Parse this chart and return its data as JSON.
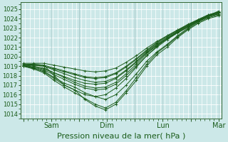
{
  "xlabel": "Pression niveau de la mer( hPa )",
  "bg_color": "#cce8e8",
  "grid_color": "#ffffff",
  "line_color": "#1a5c1a",
  "ylim": [
    1013.5,
    1025.7
  ],
  "yticks": [
    1014,
    1015,
    1016,
    1017,
    1018,
    1019,
    1020,
    1021,
    1022,
    1023,
    1024,
    1025
  ],
  "xtick_labels": [
    "",
    "Sam",
    "",
    "Dim",
    "",
    "Lun",
    "",
    "Mar"
  ],
  "xtick_positions": [
    0,
    1,
    2,
    3,
    4,
    5,
    6,
    7
  ],
  "xlim": [
    -0.1,
    7.1
  ],
  "major_day_vlines": [
    2,
    4,
    6
  ],
  "ensemble_lines": [
    [
      1019.0,
      1019.2,
      1019.1,
      1018.0,
      1017.0,
      1016.5,
      1015.5,
      1014.8,
      1014.4,
      1015.0,
      1016.2,
      1017.5,
      1019.0,
      1020.2,
      1021.0,
      1022.0,
      1022.8,
      1023.5,
      1024.0,
      1024.3
    ],
    [
      1019.0,
      1018.8,
      1018.5,
      1017.8,
      1017.2,
      1016.8,
      1016.2,
      1015.8,
      1015.5,
      1016.0,
      1017.0,
      1018.2,
      1019.5,
      1020.5,
      1021.3,
      1022.2,
      1023.0,
      1023.7,
      1024.2,
      1024.5
    ],
    [
      1019.0,
      1018.7,
      1018.3,
      1017.5,
      1016.8,
      1016.2,
      1015.6,
      1015.0,
      1014.6,
      1015.2,
      1016.4,
      1017.8,
      1019.2,
      1020.4,
      1021.2,
      1022.1,
      1022.9,
      1023.6,
      1024.1,
      1024.4
    ],
    [
      1019.1,
      1019.0,
      1018.8,
      1018.3,
      1017.8,
      1017.3,
      1016.9,
      1016.7,
      1016.8,
      1017.3,
      1018.2,
      1019.2,
      1020.3,
      1021.2,
      1021.9,
      1022.6,
      1023.2,
      1023.8,
      1024.3,
      1024.6
    ],
    [
      1019.2,
      1019.1,
      1019.0,
      1018.6,
      1018.2,
      1017.8,
      1017.5,
      1017.3,
      1017.4,
      1017.8,
      1018.6,
      1019.5,
      1020.5,
      1021.3,
      1022.0,
      1022.7,
      1023.3,
      1023.9,
      1024.4,
      1024.7
    ],
    [
      1019.1,
      1018.9,
      1018.6,
      1018.1,
      1017.6,
      1017.1,
      1016.7,
      1016.5,
      1016.6,
      1017.1,
      1018.0,
      1019.0,
      1020.1,
      1021.0,
      1021.8,
      1022.5,
      1023.1,
      1023.7,
      1024.3,
      1024.6
    ],
    [
      1019.0,
      1018.9,
      1018.7,
      1018.3,
      1017.9,
      1017.5,
      1017.2,
      1017.1,
      1017.2,
      1017.7,
      1018.5,
      1019.4,
      1020.4,
      1021.2,
      1021.9,
      1022.5,
      1023.1,
      1023.7,
      1024.2,
      1024.5
    ],
    [
      1019.2,
      1019.2,
      1019.1,
      1018.8,
      1018.5,
      1018.2,
      1017.9,
      1017.8,
      1017.9,
      1018.3,
      1019.0,
      1019.8,
      1020.7,
      1021.5,
      1022.2,
      1022.8,
      1023.4,
      1023.9,
      1024.4,
      1024.7
    ],
    [
      1019.1,
      1019.1,
      1019.0,
      1018.7,
      1018.4,
      1018.1,
      1017.8,
      1017.7,
      1017.8,
      1018.2,
      1018.9,
      1019.7,
      1020.6,
      1021.4,
      1022.1,
      1022.7,
      1023.3,
      1023.8,
      1024.3,
      1024.6
    ],
    [
      1019.3,
      1019.3,
      1019.3,
      1019.1,
      1018.9,
      1018.7,
      1018.5,
      1018.4,
      1018.5,
      1018.8,
      1019.4,
      1020.1,
      1020.9,
      1021.6,
      1022.2,
      1022.8,
      1023.3,
      1023.8,
      1024.3,
      1024.8
    ],
    [
      1019.0,
      1018.8,
      1018.4,
      1017.7,
      1017.0,
      1016.5,
      1016.0,
      1015.8,
      1016.0,
      1016.7,
      1017.7,
      1018.9,
      1020.1,
      1021.1,
      1021.9,
      1022.6,
      1023.2,
      1023.8,
      1024.3,
      1024.6
    ]
  ],
  "n_points": 20,
  "minor_x_spacing": 0.1667
}
